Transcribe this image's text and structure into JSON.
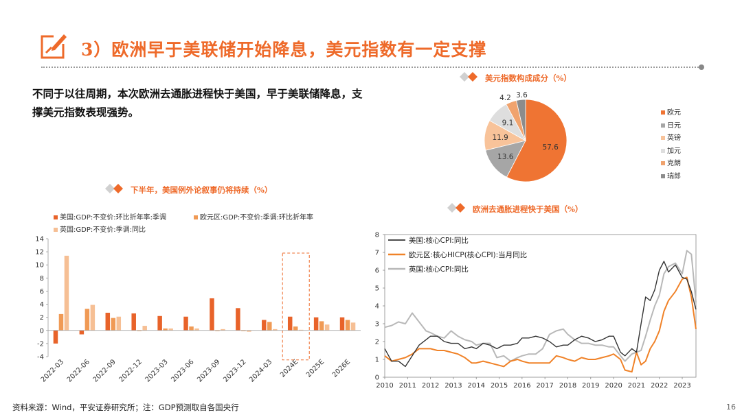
{
  "title": "3）欧洲早于美联储开始降息，美元指数有一定支撑",
  "intro": "不同于以往周期，本次欧洲去通胀进程快于美国，早于美联储降息，支撑美元指数表现强势。",
  "footer": "资料来源：Wind，平安证券研究所；注：GDP预测取自各国央行",
  "page_number": "16",
  "colors": {
    "accent": "#ee6a2a",
    "us_bar": "#e8632a",
    "ea_bar": "#f09a55",
    "uk_bar": "#f6bf94",
    "us_line": "#333333",
    "ea_line": "#f08228",
    "uk_line": "#b8b8b8"
  },
  "chart_data": [
    {
      "type": "pie",
      "title": "美元指数构成成分（%）",
      "labels": [
        "欧元",
        "日元",
        "英镑",
        "加元",
        "克朗",
        "瑞郎"
      ],
      "values": [
        57.6,
        13.6,
        11.9,
        9.1,
        4.2,
        3.6
      ],
      "colors": [
        "#ef7433",
        "#a6a6a6",
        "#f8c39a",
        "#dedede",
        "#f0a36e",
        "#8c8c8c"
      ],
      "legend_position": "right"
    },
    {
      "type": "bar",
      "title": "下半年，美国例外论叙事仍将持续（%）",
      "categories": [
        "2022-03",
        "2022-06",
        "2022-09",
        "2022-12",
        "2023-03",
        "2023-06",
        "2023-09",
        "2023-12",
        "2024-03",
        "2024E",
        "2025E",
        "2026E"
      ],
      "series": [
        {
          "name": "美国:GDP:不变价:环比折年率:季调",
          "values": [
            -2.0,
            -0.6,
            2.7,
            2.6,
            2.2,
            2.1,
            4.9,
            3.4,
            1.6,
            2.1,
            2.0,
            2.0
          ]
        },
        {
          "name": "欧元区:GDP:不变价:季调:环比折年率",
          "values": [
            2.5,
            3.3,
            1.9,
            -0.1,
            0.3,
            0.6,
            -0.1,
            -0.1,
            1.3,
            0.6,
            1.4,
            1.6
          ]
        },
        {
          "name": "英国:GDP:不变价:季调:同比",
          "values": [
            11.4,
            3.9,
            2.1,
            0.7,
            0.3,
            0.3,
            0.2,
            -0.2,
            0.2,
            0.1,
            0.9,
            1.2
          ]
        }
      ],
      "ylim": [
        -4,
        14
      ],
      "yticks": [
        -4,
        -2,
        0,
        2,
        4,
        6,
        8,
        10,
        12,
        14
      ],
      "highlight_category": "2024E",
      "legend_position": "top-left"
    },
    {
      "type": "line",
      "title": "欧洲去通胀进程快于美国（%）",
      "xlim": [
        2010,
        2023.6
      ],
      "ylim": [
        0,
        8
      ],
      "xticks": [
        2010,
        2011,
        2012,
        2013,
        2014,
        2015,
        2016,
        2017,
        2018,
        2019,
        2020,
        2021,
        2022,
        2023
      ],
      "yticks": [
        0,
        1,
        2,
        3,
        4,
        5,
        6,
        7,
        8
      ],
      "legend_position": "top-left",
      "series": [
        {
          "name": "美国:核心CPI:同比",
          "x": [
            2010.0,
            2010.3,
            2010.6,
            2010.9,
            2011.2,
            2011.5,
            2011.8,
            2012.0,
            2012.3,
            2012.6,
            2012.9,
            2013.2,
            2013.5,
            2013.8,
            2014.0,
            2014.3,
            2014.6,
            2014.9,
            2015.2,
            2015.5,
            2015.8,
            2016.0,
            2016.3,
            2016.6,
            2016.9,
            2017.2,
            2017.5,
            2017.8,
            2018.0,
            2018.3,
            2018.6,
            2018.9,
            2019.2,
            2019.5,
            2019.8,
            2020.0,
            2020.3,
            2020.5,
            2020.8,
            2021.0,
            2021.2,
            2021.4,
            2021.6,
            2021.8,
            2022.0,
            2022.2,
            2022.4,
            2022.7,
            2023.0,
            2023.2,
            2023.4,
            2023.6
          ],
          "y": [
            1.6,
            0.9,
            0.9,
            0.6,
            1.2,
            1.8,
            2.1,
            2.3,
            2.3,
            2.0,
            1.9,
            1.9,
            1.6,
            1.7,
            1.6,
            1.9,
            1.8,
            1.6,
            1.8,
            1.8,
            1.9,
            2.2,
            2.2,
            2.3,
            2.2,
            2.0,
            1.7,
            1.8,
            1.8,
            2.1,
            2.3,
            2.2,
            2.0,
            2.1,
            2.3,
            2.3,
            1.4,
            1.2,
            1.6,
            1.4,
            3.0,
            4.5,
            4.3,
            4.9,
            6.0,
            6.5,
            5.9,
            6.3,
            5.6,
            5.5,
            4.8,
            3.8
          ]
        },
        {
          "name": "欧元区:核心HICP(核心CPI):当月同比",
          "x": [
            2010.0,
            2010.3,
            2010.6,
            2010.9,
            2011.2,
            2011.5,
            2011.8,
            2012.0,
            2012.3,
            2012.6,
            2012.9,
            2013.2,
            2013.5,
            2013.8,
            2014.0,
            2014.3,
            2014.6,
            2014.9,
            2015.2,
            2015.5,
            2015.8,
            2016.0,
            2016.3,
            2016.6,
            2016.9,
            2017.2,
            2017.5,
            2017.8,
            2018.0,
            2018.3,
            2018.6,
            2018.9,
            2019.2,
            2019.5,
            2019.8,
            2020.0,
            2020.3,
            2020.5,
            2020.8,
            2021.0,
            2021.2,
            2021.4,
            2021.6,
            2021.8,
            2022.0,
            2022.2,
            2022.4,
            2022.7,
            2023.0,
            2023.2,
            2023.4,
            2023.6
          ],
          "y": [
            1.2,
            0.9,
            1.0,
            1.1,
            1.3,
            1.6,
            1.6,
            1.6,
            1.5,
            1.5,
            1.4,
            1.3,
            1.1,
            0.8,
            0.8,
            0.9,
            0.8,
            0.7,
            0.6,
            0.9,
            1.0,
            0.9,
            0.8,
            0.8,
            0.8,
            0.8,
            1.2,
            1.1,
            1.0,
            0.9,
            1.1,
            1.0,
            1.0,
            1.1,
            1.2,
            1.3,
            1.0,
            0.4,
            0.3,
            1.4,
            0.7,
            0.9,
            1.6,
            2.0,
            2.6,
            3.7,
            4.3,
            4.8,
            5.5,
            5.6,
            4.5,
            2.7
          ]
        },
        {
          "name": "英国:核心CPI:同比",
          "x": [
            2010.0,
            2010.3,
            2010.6,
            2010.9,
            2011.2,
            2011.5,
            2011.8,
            2012.0,
            2012.3,
            2012.6,
            2012.9,
            2013.2,
            2013.5,
            2013.8,
            2014.0,
            2014.3,
            2014.6,
            2014.9,
            2015.2,
            2015.5,
            2015.8,
            2016.0,
            2016.3,
            2016.6,
            2016.9,
            2017.2,
            2017.5,
            2017.8,
            2018.0,
            2018.3,
            2018.6,
            2018.9,
            2019.2,
            2019.5,
            2019.8,
            2020.0,
            2020.3,
            2020.5,
            2020.8,
            2021.0,
            2021.2,
            2021.4,
            2021.6,
            2021.8,
            2022.0,
            2022.2,
            2022.4,
            2022.7,
            2023.0,
            2023.2,
            2023.4,
            2023.6
          ],
          "y": [
            2.8,
            2.9,
            3.1,
            3.0,
            3.6,
            3.1,
            2.6,
            2.5,
            2.3,
            2.2,
            2.6,
            2.3,
            2.1,
            2.0,
            1.8,
            1.9,
            1.9,
            1.1,
            1.2,
            0.9,
            1.1,
            1.2,
            1.3,
            1.3,
            1.6,
            2.4,
            2.6,
            2.7,
            2.4,
            2.1,
            1.9,
            1.9,
            1.8,
            1.8,
            1.7,
            1.7,
            1.2,
            0.9,
            1.3,
            1.4,
            1.5,
            2.3,
            3.2,
            4.0,
            4.6,
            5.8,
            6.2,
            6.4,
            5.8,
            7.1,
            6.9,
            4.2
          ]
        }
      ]
    }
  ]
}
